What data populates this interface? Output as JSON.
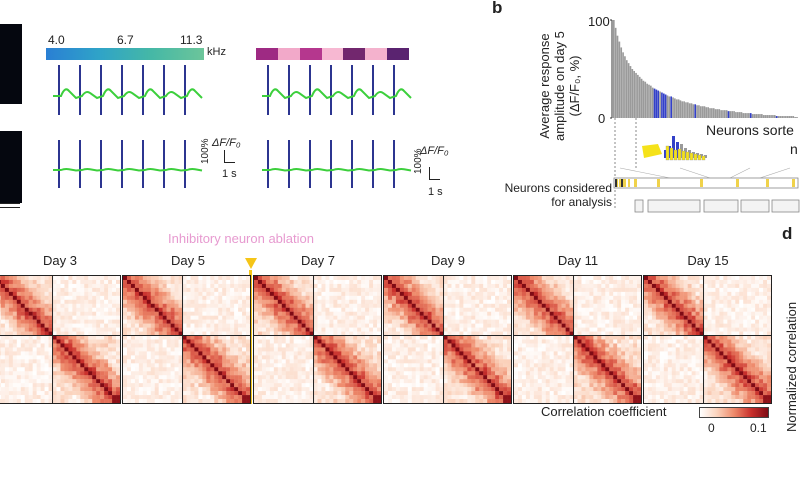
{
  "panel_a": {
    "freq_low": "4.0",
    "freq_mid": "6.7",
    "freq_high": "11.3",
    "freq_unit": "kHz",
    "gradient_colors": [
      "#2a7fd4",
      "#2fa3c8",
      "#45b8a6",
      "#6cc59a"
    ],
    "pattern_colors": [
      "#9e2a83",
      "#f2a9c9",
      "#b5378e",
      "#f7b8d2",
      "#72276e",
      "#f4b2cd",
      "#5a2370"
    ],
    "scale_label": "ΔF/F₀",
    "scale_pct": "100%",
    "scale_time": "1 s",
    "line_color": "#2c3590",
    "trace_color": "#3ccf3c"
  },
  "panel_b": {
    "letter": "b",
    "ylabel_line1": "Average response",
    "ylabel_line2": "amplitude on day 5",
    "ylabel_line3": "(ΔF/F₀, %)",
    "y_max": "100",
    "y_min": "0",
    "sorted_label": "Neurons sorte",
    "sorted_label2": "n",
    "considered_line1": "Neurons considered",
    "considered_line2": "for analysis"
  },
  "panel_c": {
    "ablation_label": "Inhibitory neuron ablation",
    "days": [
      "Day 3",
      "Day 5",
      "Day 7",
      "Day 9",
      "Day 11",
      "Day 15"
    ],
    "cbar_label": "Correlation coefficient",
    "cbar_min": "0",
    "cbar_max": "0.1",
    "marker_color": "#f5c518"
  },
  "panel_d": {
    "letter": "d",
    "ylabel": "Normalized correlation"
  },
  "chart_data": {
    "type": "bar",
    "title": "",
    "xlabel": "Neurons sorted",
    "ylabel": "Average response amplitude on day 5 (ΔF/F0, %)",
    "ylim": [
      0,
      100
    ],
    "values": [
      100,
      92,
      84,
      78,
      72,
      67,
      63,
      59,
      56,
      53,
      50,
      48,
      46,
      44,
      42,
      40,
      38,
      37,
      35,
      34,
      33,
      31,
      30,
      29,
      28,
      27,
      26,
      25,
      24,
      23,
      22,
      22,
      21,
      20,
      19,
      19,
      18,
      17,
      17,
      16,
      16,
      15,
      15,
      14,
      14,
      13,
      13,
      12,
      12,
      12,
      11,
      11,
      10,
      10,
      10,
      9,
      9,
      9,
      8,
      8,
      8,
      8,
      7,
      7,
      7,
      7,
      6,
      6,
      6,
      6,
      5,
      5,
      5,
      5,
      5,
      4,
      4,
      4,
      4,
      4,
      4,
      3,
      3,
      3,
      3,
      3,
      3,
      3,
      2,
      2,
      2,
      2,
      2,
      2,
      2,
      2,
      2,
      2,
      1,
      1
    ],
    "highlighted_indices": [
      22,
      23,
      24,
      26,
      27,
      28,
      31,
      44,
      62,
      74,
      88
    ]
  }
}
